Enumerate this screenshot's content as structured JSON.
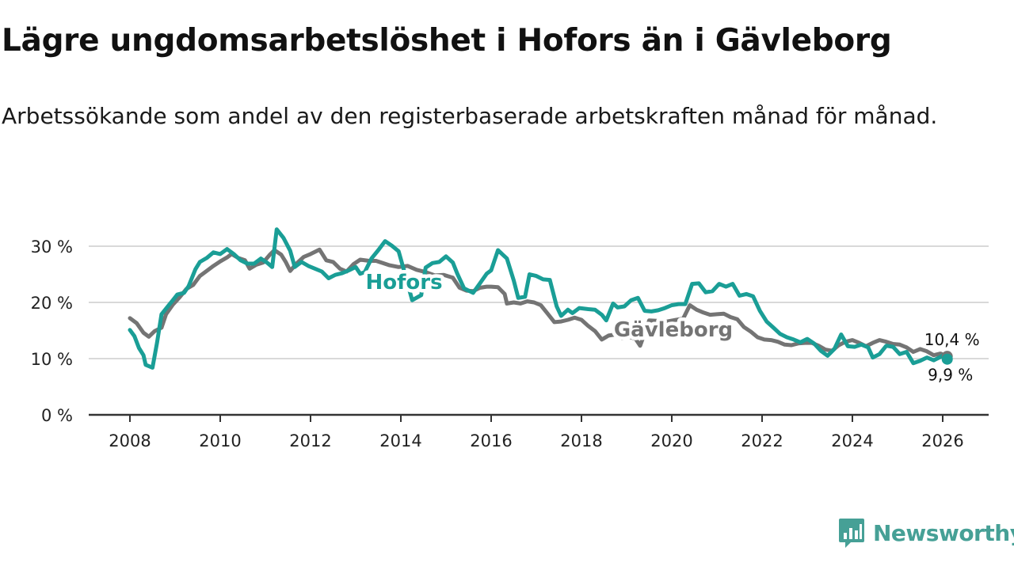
{
  "title": "Lägre ungdomsarbetslöshet i Hofors än i Gävleborg",
  "subtitle": "Arbetssökande som andel av den registerbaserade arbetskraften månad för månad.",
  "brand": {
    "name": "Newsworthy"
  },
  "colors": {
    "hofors": "#1a9e96",
    "gavleborg": "#747474",
    "grid": "#d9d9d9",
    "axis": "#333333"
  },
  "chart_data": {
    "type": "line",
    "title": "Lägre ungdomsarbetslöshet i Hofors än i Gävleborg",
    "xlabel": "",
    "ylabel": "",
    "xlim": [
      2008,
      2026
    ],
    "ylim": [
      0,
      30
    ],
    "yticks": [
      0,
      10,
      20,
      30
    ],
    "ytick_labels": [
      "0 %",
      "10 %",
      "20 %",
      "30 %"
    ],
    "xticks": [
      2008,
      2010,
      2012,
      2014,
      2016,
      2018,
      2020,
      2022,
      2024,
      2026
    ],
    "xtick_labels": [
      "2008",
      "2010",
      "2012",
      "2014",
      "2016",
      "2018",
      "2020",
      "2022",
      "2024",
      "2026"
    ],
    "grid": true,
    "series": [
      {
        "name": "Gävleborg",
        "label": "Gävleborg",
        "last_label": "10,4 %",
        "points": [
          [
            2008.0,
            17.2
          ],
          [
            2008.15,
            16.3
          ],
          [
            2008.3,
            14.6
          ],
          [
            2008.42,
            13.9
          ],
          [
            2008.55,
            14.9
          ],
          [
            2008.7,
            15.5
          ],
          [
            2008.8,
            17.9
          ],
          [
            2008.95,
            19.6
          ],
          [
            2009.1,
            20.9
          ],
          [
            2009.25,
            22.4
          ],
          [
            2009.4,
            23.1
          ],
          [
            2009.55,
            24.7
          ],
          [
            2009.7,
            25.6
          ],
          [
            2009.85,
            26.5
          ],
          [
            2010.0,
            27.3
          ],
          [
            2010.15,
            28.0
          ],
          [
            2010.25,
            28.6
          ],
          [
            2010.4,
            27.9
          ],
          [
            2010.55,
            27.5
          ],
          [
            2010.65,
            26.0
          ],
          [
            2010.8,
            26.7
          ],
          [
            2010.95,
            27.1
          ],
          [
            2011.1,
            28.5
          ],
          [
            2011.2,
            29.3
          ],
          [
            2011.35,
            28.5
          ],
          [
            2011.45,
            27.2
          ],
          [
            2011.55,
            25.6
          ],
          [
            2011.7,
            27.0
          ],
          [
            2011.85,
            28.1
          ],
          [
            2012.0,
            28.6
          ],
          [
            2012.2,
            29.4
          ],
          [
            2012.35,
            27.5
          ],
          [
            2012.5,
            27.2
          ],
          [
            2012.65,
            26.0
          ],
          [
            2012.8,
            25.5
          ],
          [
            2012.95,
            26.8
          ],
          [
            2013.1,
            27.6
          ],
          [
            2013.3,
            27.4
          ],
          [
            2013.45,
            27.4
          ],
          [
            2013.6,
            27.0
          ],
          [
            2013.75,
            26.6
          ],
          [
            2013.95,
            26.3
          ],
          [
            2014.15,
            26.5
          ],
          [
            2014.35,
            25.8
          ],
          [
            2014.55,
            25.4
          ],
          [
            2014.75,
            24.8
          ],
          [
            2014.95,
            24.9
          ],
          [
            2015.15,
            24.4
          ],
          [
            2015.3,
            22.6
          ],
          [
            2015.45,
            22.1
          ],
          [
            2015.6,
            22.0
          ],
          [
            2015.75,
            22.6
          ],
          [
            2015.9,
            22.8
          ],
          [
            2016.0,
            22.8
          ],
          [
            2016.15,
            22.7
          ],
          [
            2016.3,
            21.5
          ],
          [
            2016.35,
            19.8
          ],
          [
            2016.5,
            20.0
          ],
          [
            2016.65,
            19.8
          ],
          [
            2016.8,
            20.2
          ],
          [
            2016.95,
            20.0
          ],
          [
            2017.1,
            19.5
          ],
          [
            2017.25,
            18.0
          ],
          [
            2017.4,
            16.5
          ],
          [
            2017.55,
            16.6
          ],
          [
            2017.7,
            16.9
          ],
          [
            2017.85,
            17.3
          ],
          [
            2018.0,
            16.9
          ],
          [
            2018.15,
            15.8
          ],
          [
            2018.3,
            14.9
          ],
          [
            2018.45,
            13.4
          ],
          [
            2018.6,
            14.1
          ],
          [
            2018.75,
            14.3
          ],
          [
            2018.9,
            13.6
          ],
          [
            2019.05,
            13.9
          ],
          [
            2019.2,
            13.5
          ],
          [
            2019.3,
            12.3
          ],
          [
            2019.5,
            16.8
          ],
          [
            2019.7,
            16.7
          ],
          [
            2019.9,
            16.6
          ],
          [
            2020.1,
            16.9
          ],
          [
            2020.25,
            17.1
          ],
          [
            2020.4,
            19.5
          ],
          [
            2020.55,
            18.7
          ],
          [
            2020.7,
            18.2
          ],
          [
            2020.85,
            17.8
          ],
          [
            2021.0,
            17.9
          ],
          [
            2021.15,
            18.0
          ],
          [
            2021.3,
            17.4
          ],
          [
            2021.45,
            17.0
          ],
          [
            2021.6,
            15.6
          ],
          [
            2021.75,
            14.8
          ],
          [
            2021.9,
            13.8
          ],
          [
            2022.05,
            13.4
          ],
          [
            2022.2,
            13.3
          ],
          [
            2022.35,
            13.0
          ],
          [
            2022.5,
            12.5
          ],
          [
            2022.65,
            12.4
          ],
          [
            2022.8,
            12.7
          ],
          [
            2022.95,
            12.8
          ],
          [
            2023.1,
            12.8
          ],
          [
            2023.25,
            12.3
          ],
          [
            2023.4,
            11.6
          ],
          [
            2023.55,
            11.4
          ],
          [
            2023.7,
            12.4
          ],
          [
            2023.85,
            13.0
          ],
          [
            2024.0,
            13.3
          ],
          [
            2024.15,
            12.8
          ],
          [
            2024.3,
            12.2
          ],
          [
            2024.45,
            12.8
          ],
          [
            2024.6,
            13.3
          ],
          [
            2024.75,
            13.0
          ],
          [
            2024.9,
            12.6
          ],
          [
            2025.05,
            12.5
          ],
          [
            2025.2,
            12.0
          ],
          [
            2025.35,
            11.2
          ],
          [
            2025.5,
            11.7
          ],
          [
            2025.65,
            11.3
          ],
          [
            2025.8,
            10.6
          ],
          [
            2025.95,
            10.9
          ],
          [
            2026.1,
            10.4
          ]
        ]
      },
      {
        "name": "Hofors",
        "label": "Hofors",
        "last_label": "9,9 %",
        "points": [
          [
            2008.0,
            15.1
          ],
          [
            2008.1,
            14.0
          ],
          [
            2008.2,
            11.9
          ],
          [
            2008.3,
            10.6
          ],
          [
            2008.35,
            8.9
          ],
          [
            2008.5,
            8.4
          ],
          [
            2008.6,
            12.8
          ],
          [
            2008.7,
            17.9
          ],
          [
            2008.85,
            19.4
          ],
          [
            2008.95,
            20.4
          ],
          [
            2009.05,
            21.4
          ],
          [
            2009.2,
            21.7
          ],
          [
            2009.3,
            22.9
          ],
          [
            2009.45,
            25.9
          ],
          [
            2009.55,
            27.2
          ],
          [
            2009.7,
            27.9
          ],
          [
            2009.85,
            28.9
          ],
          [
            2010.0,
            28.6
          ],
          [
            2010.15,
            29.5
          ],
          [
            2010.3,
            28.6
          ],
          [
            2010.45,
            27.5
          ],
          [
            2010.6,
            26.9
          ],
          [
            2010.75,
            26.9
          ],
          [
            2010.9,
            27.8
          ],
          [
            2011.05,
            27.0
          ],
          [
            2011.15,
            26.3
          ],
          [
            2011.25,
            33.0
          ],
          [
            2011.4,
            31.5
          ],
          [
            2011.55,
            29.2
          ],
          [
            2011.65,
            26.3
          ],
          [
            2011.8,
            27.2
          ],
          [
            2011.95,
            26.5
          ],
          [
            2012.1,
            26.0
          ],
          [
            2012.25,
            25.5
          ],
          [
            2012.4,
            24.3
          ],
          [
            2012.55,
            24.9
          ],
          [
            2012.7,
            25.2
          ],
          [
            2012.85,
            25.7
          ],
          [
            2013.0,
            26.3
          ],
          [
            2013.1,
            25.1
          ],
          [
            2013.2,
            25.4
          ],
          [
            2013.35,
            27.8
          ],
          [
            2013.5,
            29.3
          ],
          [
            2013.65,
            30.9
          ],
          [
            2013.8,
            30.1
          ],
          [
            2013.95,
            29.1
          ],
          [
            2014.05,
            26.3
          ],
          [
            2014.25,
            20.4
          ],
          [
            2014.45,
            21.3
          ],
          [
            2014.55,
            26.2
          ],
          [
            2014.7,
            27.0
          ],
          [
            2014.85,
            27.2
          ],
          [
            2015.0,
            28.2
          ],
          [
            2015.15,
            27.1
          ],
          [
            2015.25,
            25.1
          ],
          [
            2015.4,
            22.5
          ],
          [
            2015.6,
            21.7
          ],
          [
            2015.75,
            23.4
          ],
          [
            2015.9,
            25.1
          ],
          [
            2016.0,
            25.7
          ],
          [
            2016.15,
            29.3
          ],
          [
            2016.35,
            27.8
          ],
          [
            2016.5,
            23.9
          ],
          [
            2016.6,
            20.8
          ],
          [
            2016.75,
            21.0
          ],
          [
            2016.85,
            25.0
          ],
          [
            2017.0,
            24.7
          ],
          [
            2017.15,
            24.1
          ],
          [
            2017.3,
            24.0
          ],
          [
            2017.45,
            19.3
          ],
          [
            2017.55,
            17.6
          ],
          [
            2017.7,
            18.7
          ],
          [
            2017.8,
            18.1
          ],
          [
            2017.95,
            19.0
          ],
          [
            2018.15,
            18.8
          ],
          [
            2018.3,
            18.7
          ],
          [
            2018.45,
            17.8
          ],
          [
            2018.55,
            16.8
          ],
          [
            2018.7,
            19.8
          ],
          [
            2018.8,
            19.1
          ],
          [
            2018.95,
            19.3
          ],
          [
            2019.1,
            20.4
          ],
          [
            2019.25,
            20.8
          ],
          [
            2019.4,
            18.5
          ],
          [
            2019.55,
            18.4
          ],
          [
            2019.7,
            18.6
          ],
          [
            2019.85,
            19.0
          ],
          [
            2020.0,
            19.5
          ],
          [
            2020.15,
            19.7
          ],
          [
            2020.3,
            19.7
          ],
          [
            2020.45,
            23.3
          ],
          [
            2020.6,
            23.4
          ],
          [
            2020.75,
            21.8
          ],
          [
            2020.9,
            22.0
          ],
          [
            2021.05,
            23.3
          ],
          [
            2021.2,
            22.8
          ],
          [
            2021.35,
            23.3
          ],
          [
            2021.5,
            21.2
          ],
          [
            2021.65,
            21.5
          ],
          [
            2021.8,
            21.1
          ],
          [
            2021.95,
            18.5
          ],
          [
            2022.1,
            16.6
          ],
          [
            2022.25,
            15.5
          ],
          [
            2022.4,
            14.4
          ],
          [
            2022.55,
            13.8
          ],
          [
            2022.7,
            13.4
          ],
          [
            2022.85,
            12.9
          ],
          [
            2023.0,
            13.5
          ],
          [
            2023.15,
            12.7
          ],
          [
            2023.3,
            11.4
          ],
          [
            2023.45,
            10.5
          ],
          [
            2023.6,
            11.7
          ],
          [
            2023.75,
            14.3
          ],
          [
            2023.9,
            12.2
          ],
          [
            2024.05,
            12.1
          ],
          [
            2024.2,
            12.5
          ],
          [
            2024.35,
            12.0
          ],
          [
            2024.45,
            10.2
          ],
          [
            2024.6,
            10.8
          ],
          [
            2024.75,
            12.3
          ],
          [
            2024.9,
            12.1
          ],
          [
            2025.05,
            10.8
          ],
          [
            2025.2,
            11.2
          ],
          [
            2025.35,
            9.2
          ],
          [
            2025.5,
            9.6
          ],
          [
            2025.65,
            10.2
          ],
          [
            2025.8,
            9.7
          ],
          [
            2025.95,
            10.3
          ],
          [
            2026.05,
            10.8
          ],
          [
            2026.1,
            9.9
          ]
        ]
      }
    ]
  }
}
